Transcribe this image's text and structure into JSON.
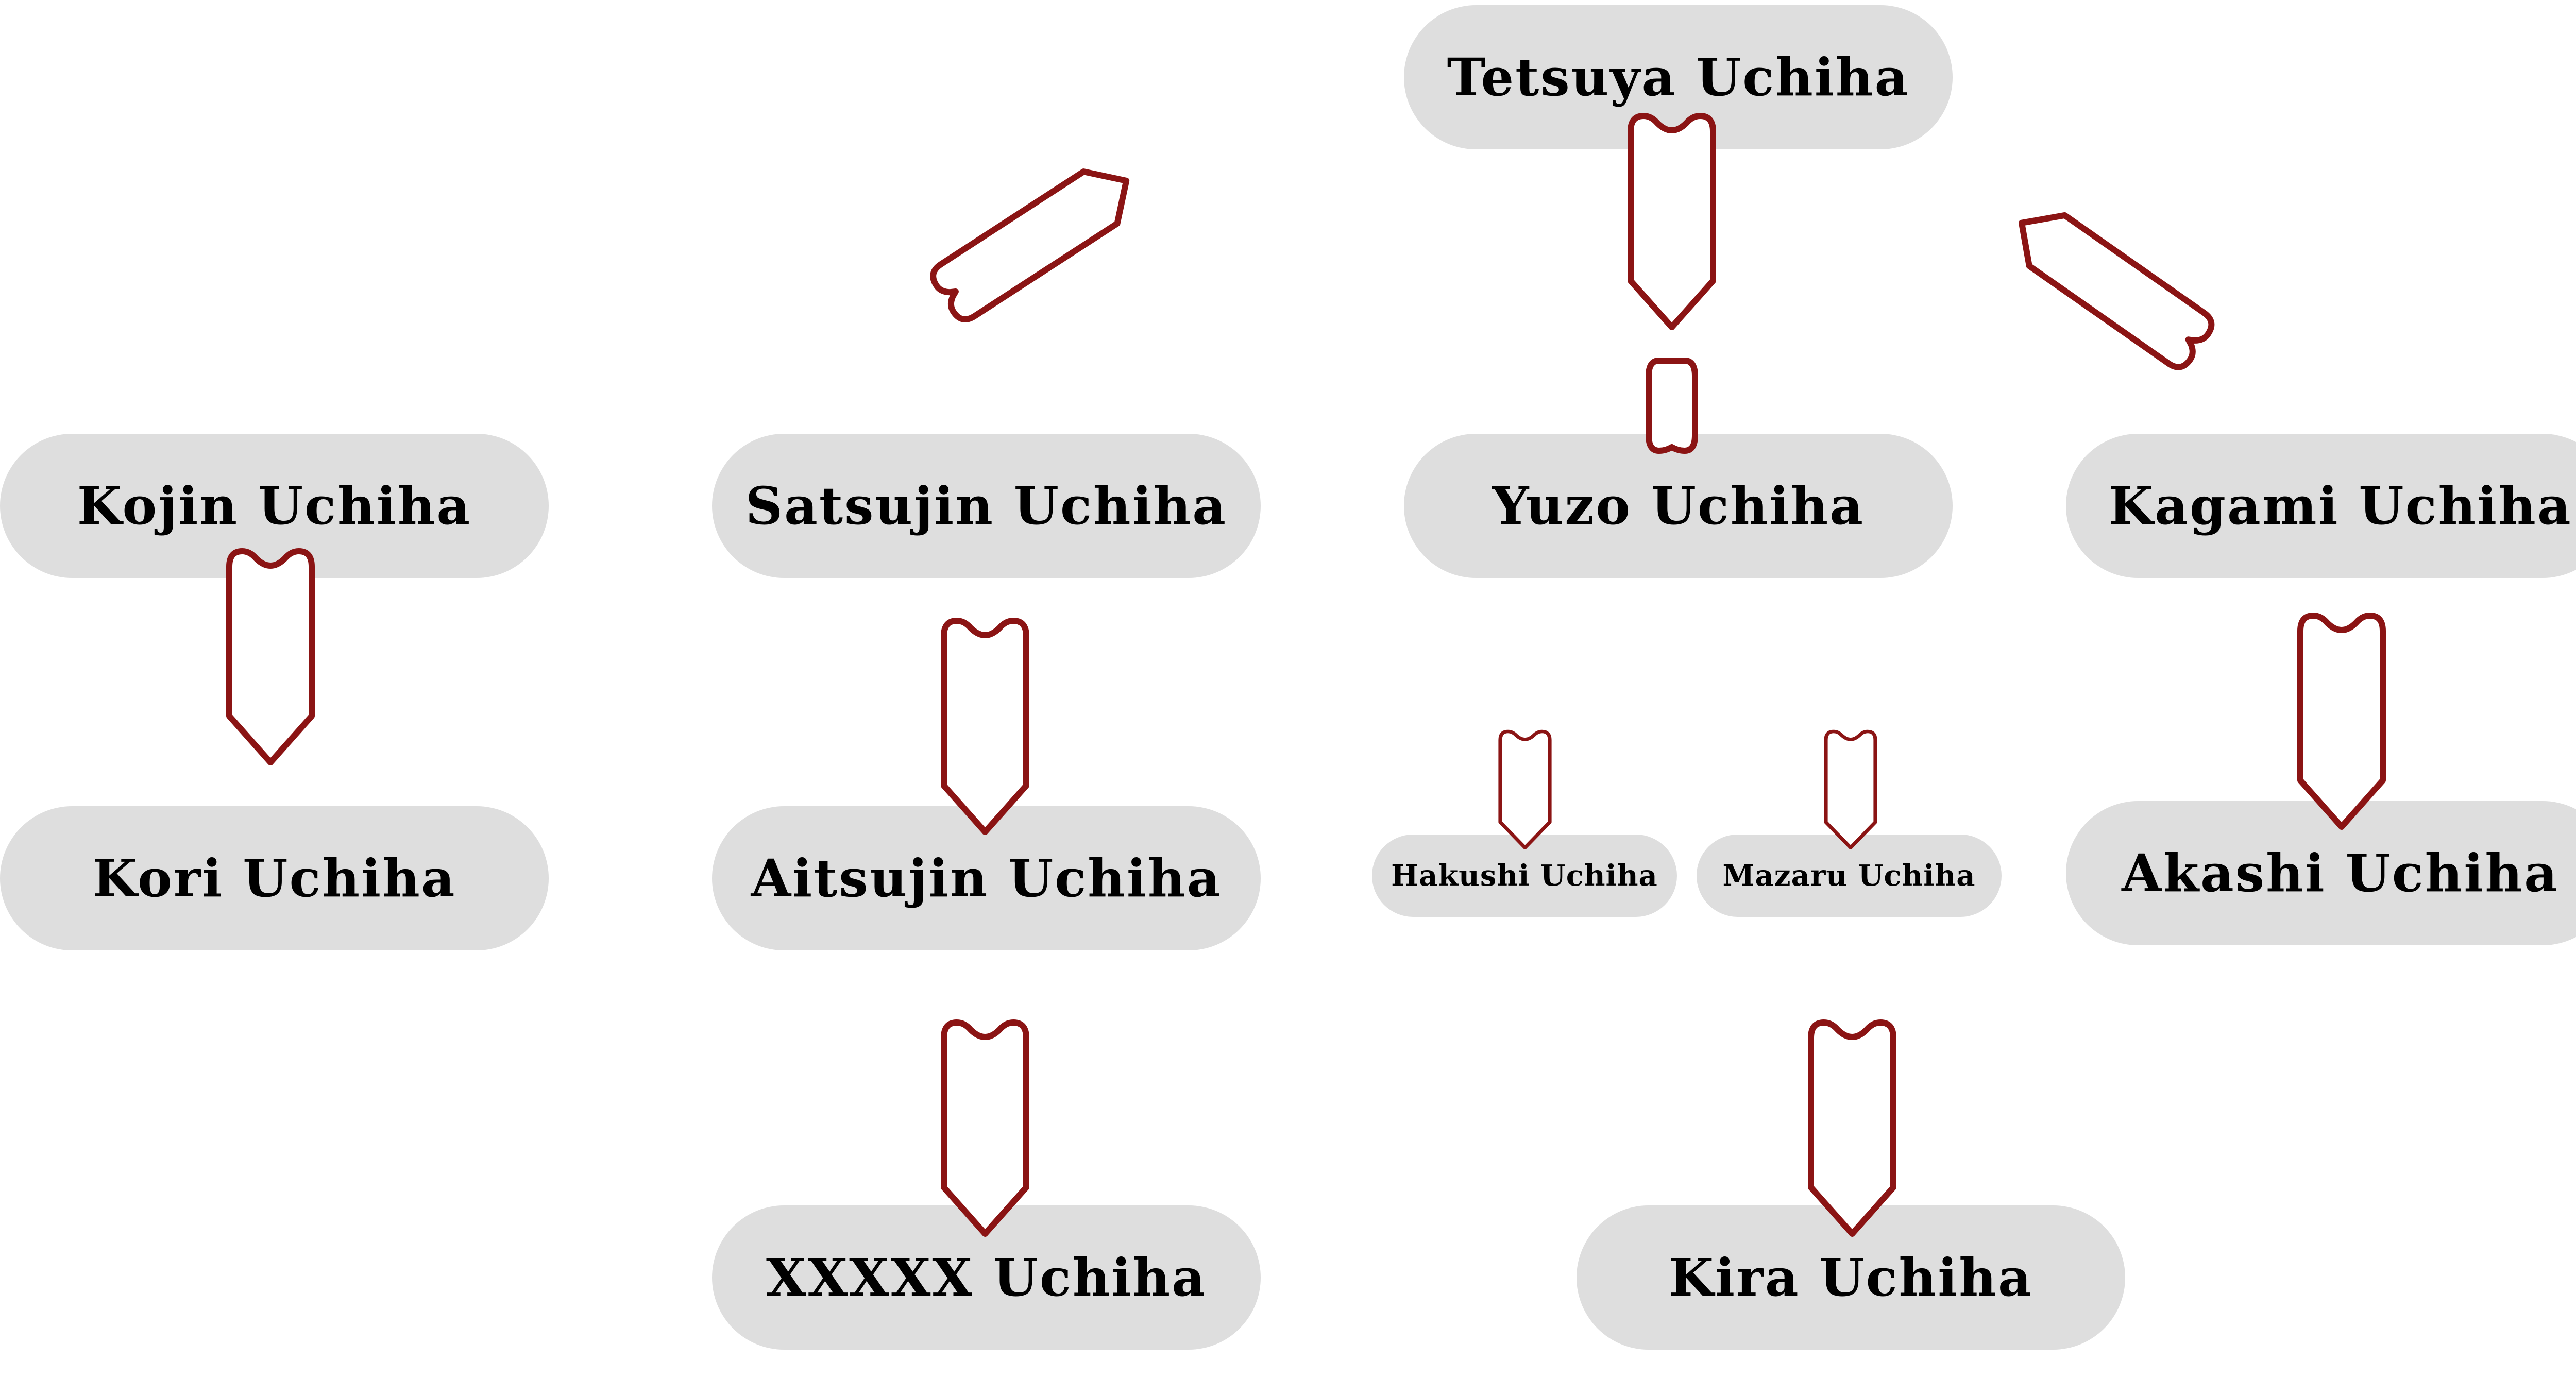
{
  "colors": {
    "node_fill": "#dedede",
    "arrow_stroke": "#8b1414",
    "arrow_fill": "#ffffff",
    "text": "#000000",
    "background": "#ffffff"
  },
  "nodes": {
    "tetsuya": "Tetsuya Uchiha",
    "kojin": "Kojin Uchiha",
    "satsujin": "Satsujin Uchiha",
    "yuzo": "Yuzo Uchiha",
    "kagami": "Kagami Uchiha",
    "kori": "Kori Uchiha",
    "aitsujin": "Aitsujin Uchiha",
    "hakushi": "Hakushi Uchiha",
    "mazaru": "Mazaru Uchiha",
    "akashi": "Akashi Uchiha",
    "xxxxx": "XXXXX Uchiha",
    "kira": "Kira Uchiha"
  },
  "links": [
    {
      "from": "tetsuya",
      "to": "yuzo"
    },
    {
      "from": "tetsuya",
      "to": "satsujin"
    },
    {
      "from": "tetsuya",
      "to": "kagami"
    },
    {
      "from": "kojin",
      "to": "kori"
    },
    {
      "from": "satsujin",
      "to": "aitsujin"
    },
    {
      "from": "aitsujin",
      "to": "xxxxx"
    },
    {
      "from": "yuzo",
      "to": "hakushi"
    },
    {
      "from": "yuzo",
      "to": "mazaru"
    },
    {
      "from": "kagami",
      "to": "akashi"
    },
    {
      "from": "mazaru",
      "to": "kira"
    }
  ]
}
